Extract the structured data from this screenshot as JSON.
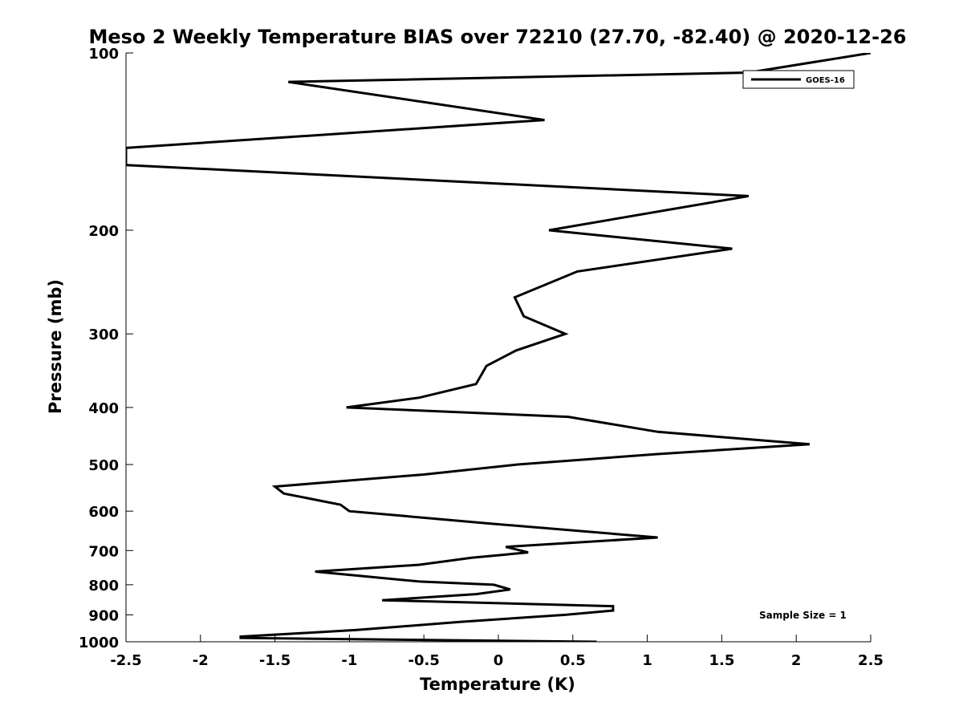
{
  "chart_data": {
    "type": "line",
    "title": "Meso 2 Weekly Temperature BIAS over 72210 (27.70, -82.40) @ 2020-12-26",
    "xlabel": "Temperature (K)",
    "ylabel": "Pressure (mb)",
    "xlim": [
      -2.5,
      2.5
    ],
    "ylim": [
      100,
      1000
    ],
    "yscale": "log",
    "yreversed": true,
    "xticks": [
      -2.5,
      -2,
      -1.5,
      -1,
      -0.5,
      0,
      0.5,
      1,
      1.5,
      2,
      2.5
    ],
    "xtick_labels": [
      "-2.5",
      "-2",
      "-1.5",
      "-1",
      "-0.5",
      "0",
      "0.5",
      "1",
      "1.5",
      "2",
      "2.5"
    ],
    "yticks": [
      100,
      200,
      300,
      400,
      500,
      600,
      700,
      800,
      900,
      1000
    ],
    "ytick_labels": [
      "100",
      "200",
      "300",
      "400",
      "500",
      "600",
      "700",
      "800",
      "900",
      "1000"
    ],
    "grid": false,
    "legend_position": "top-right",
    "annotation": "Sample Size = 1",
    "series": [
      {
        "name": "GOES-16",
        "color": "#000000",
        "x": [
          2.5,
          1.68,
          -1.41,
          0.31,
          -2.5,
          -2.5,
          1.68,
          0.34,
          1.57,
          0.53,
          0.11,
          0.17,
          0.45,
          0.12,
          -0.08,
          -0.15,
          -0.53,
          -1.02,
          0.47,
          1.07,
          2.09,
          1.07,
          0.13,
          -0.5,
          -1.5,
          -1.44,
          -1.06,
          -1.0,
          -0.05,
          1.07,
          0.05,
          0.2,
          -0.18,
          -0.53,
          -1.23,
          -0.53,
          -0.03,
          0.08,
          -0.15,
          -0.78,
          0.77,
          0.77,
          0.77,
          0.45,
          -0.25,
          -0.95,
          -1.73,
          -1.73,
          0.66
        ],
        "y": [
          100,
          108,
          112,
          130,
          145,
          155,
          175,
          200,
          215,
          235,
          260,
          280,
          300,
          320,
          340,
          365,
          385,
          400,
          415,
          440,
          462,
          480,
          500,
          520,
          545,
          560,
          585,
          600,
          630,
          665,
          690,
          705,
          720,
          740,
          760,
          790,
          800,
          815,
          830,
          850,
          870,
          880,
          885,
          900,
          925,
          955,
          980,
          985,
          1000
        ]
      }
    ]
  }
}
